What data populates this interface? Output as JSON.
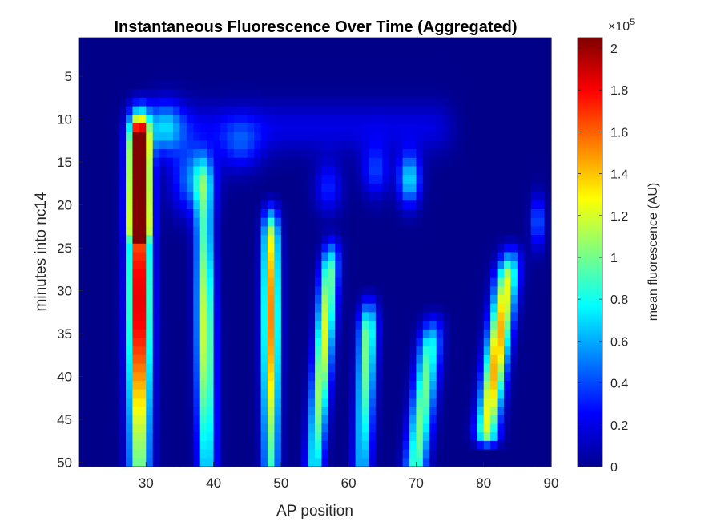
{
  "chart_data": {
    "type": "heatmap",
    "title": "Instantaneous Fluorescence Over Time (Aggregated)",
    "xlabel": "AP position",
    "ylabel": "minutes into nc14",
    "xlim": [
      20,
      90
    ],
    "ylim": [
      1,
      50
    ],
    "y_reversed": true,
    "xticks": [
      30,
      40,
      50,
      60,
      70,
      80,
      90
    ],
    "yticks": [
      5,
      10,
      15,
      20,
      25,
      30,
      35,
      40,
      45,
      50
    ],
    "colormap": "jet",
    "colorbar": {
      "label": "mean fluorescence (AU)",
      "multiplier": "×10",
      "multiplier_exponent": "5",
      "range": [
        0,
        2.05
      ],
      "ticks": [
        "0",
        "0.2",
        "0.4",
        "0.6",
        "0.8",
        "1",
        "1.2",
        "1.4",
        "1.6",
        "1.8",
        "2"
      ]
    },
    "grid": false,
    "stripes": [
      {
        "ap_center_start": 29.0,
        "ap_center_end": 29.0,
        "t_start": 8,
        "t_end": 50,
        "width": 1.6,
        "peak": 2.0,
        "peak_time": 31
      },
      {
        "ap_center_start": 29.0,
        "ap_center_end": 29.0,
        "t_start": 10,
        "t_end": 22,
        "width": 1.4,
        "peak": 1.75,
        "peak_time": 15
      },
      {
        "ap_center_start": 38.5,
        "ap_center_end": 39.0,
        "t_start": 14,
        "t_end": 50,
        "width": 1.3,
        "peak": 1.2,
        "peak_time": 35
      },
      {
        "ap_center_start": 48.5,
        "ap_center_end": 48.5,
        "t_start": 20,
        "t_end": 50,
        "width": 1.2,
        "peak": 1.5,
        "peak_time": 33
      },
      {
        "ap_center_start": 57.5,
        "ap_center_end": 55.0,
        "t_start": 24,
        "t_end": 50,
        "width": 1.3,
        "peak": 1.2,
        "peak_time": 36
      },
      {
        "ap_center_start": 63.0,
        "ap_center_end": 62.0,
        "t_start": 31,
        "t_end": 50,
        "width": 1.3,
        "peak": 1.0,
        "peak_time": 36
      },
      {
        "ap_center_start": 72.5,
        "ap_center_end": 70.0,
        "t_start": 33,
        "t_end": 50,
        "width": 1.6,
        "peak": 1.0,
        "peak_time": 44
      },
      {
        "ap_center_start": 84.0,
        "ap_center_end": 80.5,
        "t_start": 25,
        "t_end": 46,
        "width": 1.6,
        "peak": 1.45,
        "peak_time": 37
      }
    ],
    "patches": [
      {
        "ap": 37,
        "t": 17,
        "width": 3.0,
        "height": 4,
        "value": 0.5
      },
      {
        "ap": 44,
        "t": 13,
        "width": 3.0,
        "height": 3,
        "value": 0.3
      },
      {
        "ap": 57,
        "t": 18,
        "width": 2.0,
        "height": 3,
        "value": 0.3
      },
      {
        "ap": 69,
        "t": 17,
        "width": 1.6,
        "height": 3,
        "value": 0.7
      },
      {
        "ap": 64,
        "t": 16,
        "width": 2.0,
        "height": 3,
        "value": 0.35
      },
      {
        "ap": 33,
        "t": 11,
        "width": 2.5,
        "height": 3,
        "value": 0.5
      },
      {
        "ap": 88,
        "t": 22,
        "width": 1.0,
        "height": 3,
        "value": 0.45
      }
    ]
  }
}
